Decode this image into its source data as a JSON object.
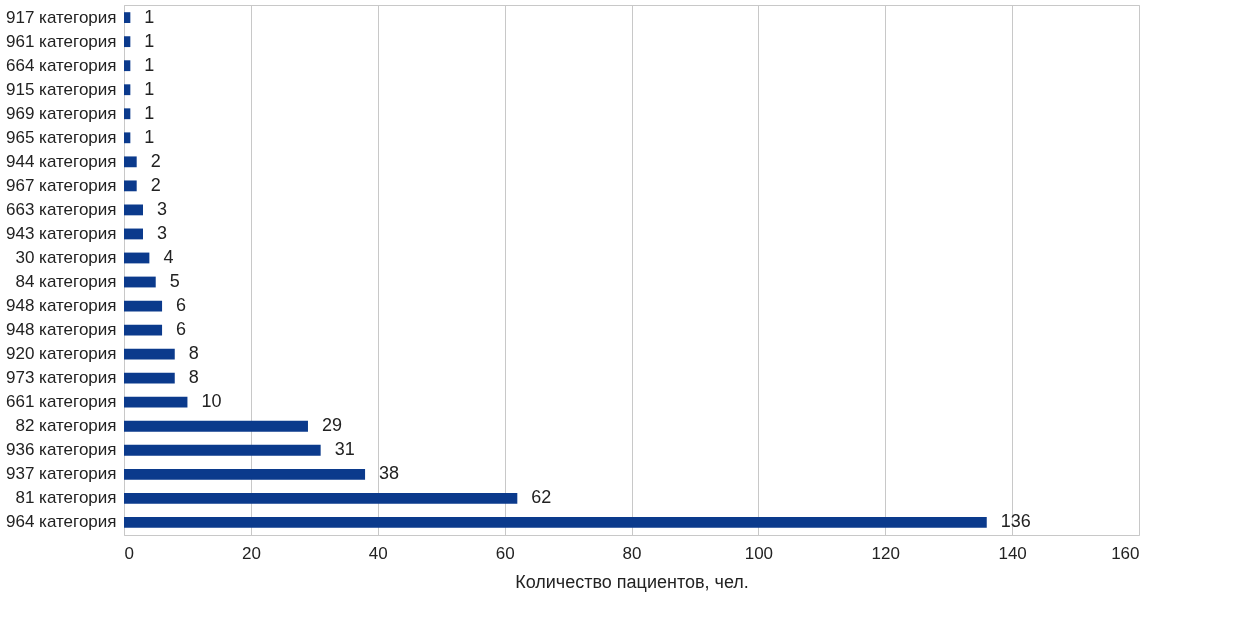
{
  "chart_data": {
    "type": "bar",
    "orientation": "horizontal",
    "xlabel": "Количество пациентов, чел.",
    "categories": [
      "917 категория",
      "961 категория",
      "664 категория",
      "915 категория",
      "969 категория",
      "965 категория",
      "944 категория",
      "967 категория",
      "663 категория",
      "943 категория",
      "30 категория",
      "84 категория",
      "948 категория",
      "948 категория",
      "920 категория",
      "973 категория",
      "661 категория",
      "82 категория",
      "936 категория",
      "937 категория",
      "81 категория",
      "964 категория"
    ],
    "values": [
      1,
      1,
      1,
      1,
      1,
      1,
      2,
      2,
      3,
      3,
      4,
      5,
      6,
      6,
      8,
      8,
      10,
      29,
      31,
      38,
      62,
      136
    ],
    "color": "#0b3a8c",
    "xlim": [
      0,
      160
    ],
    "xticks": [
      0,
      20,
      40,
      60,
      80,
      100,
      120,
      140,
      160
    ],
    "grid": "x",
    "data_labels": true
  }
}
